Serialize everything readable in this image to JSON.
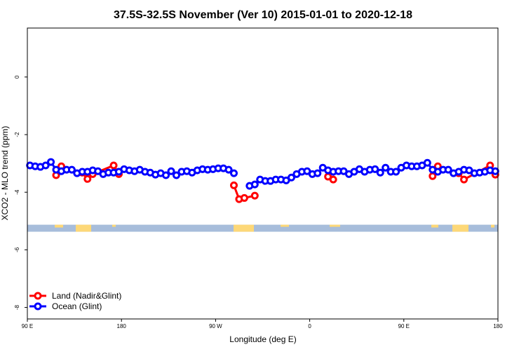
{
  "chart_data": {
    "type": "line",
    "title": "37.5S-32.5S November (Ver 10)   2015-01-01 to 2020-12-18",
    "xlabel": "Longitude (deg E)",
    "ylabel": "XCO2 - MLO trend (ppm)",
    "xlim": [
      90,
      540
    ],
    "ylim": [
      -8.4,
      1.7
    ],
    "x_ticks": [
      {
        "value": 90,
        "label": "90 E"
      },
      {
        "value": 180,
        "label": "180"
      },
      {
        "value": 270,
        "label": "90 W"
      },
      {
        "value": 360,
        "label": "0"
      },
      {
        "value": 450,
        "label": "90 E"
      },
      {
        "value": 540,
        "label": "180"
      }
    ],
    "y_ticks": [
      {
        "value": 0,
        "label": "0"
      },
      {
        "value": -2,
        "label": "-2"
      },
      {
        "value": -4,
        "label": "-4"
      },
      {
        "value": -6,
        "label": "-6"
      },
      {
        "value": -8,
        "label": "-8"
      }
    ],
    "grid": false,
    "legend_position": "bottom-left",
    "land_mask_y": -5.25,
    "series": [
      {
        "name": "Land (Nadir&Glint)",
        "color": "#ff0000",
        "x": [
          117.5,
          122.5,
          142.5,
          147.5,
          152.5,
          172.5,
          177.5,
          287.5,
          292.5,
          297.5,
          307.5,
          377.5,
          382.5,
          477.5,
          482.5,
          502.5,
          507.5,
          532.5,
          537.5
        ],
        "y": [
          -3.41,
          -3.1,
          -3.32,
          -3.54,
          -3.37,
          -3.07,
          -3.37,
          -3.76,
          -4.24,
          -4.2,
          -4.12,
          -3.46,
          -3.56,
          -3.44,
          -3.1,
          -3.34,
          -3.56,
          -3.07,
          -3.39
        ]
      },
      {
        "name": "Ocean (Glint)",
        "color": "#0000ff",
        "x_start": 92.5,
        "x_step": 5,
        "segments": [
          {
            "start_index": 0,
            "y": [
              -3.07,
              -3.1,
              -3.12,
              -3.07,
              -2.95,
              -3.22,
              -3.27,
              -3.22,
              -3.22,
              -3.34,
              -3.29,
              -3.29,
              -3.24,
              -3.27,
              -3.37,
              -3.32,
              -3.32,
              -3.29,
              -3.2,
              -3.24,
              -3.27,
              -3.22,
              -3.29,
              -3.32,
              -3.39,
              -3.34,
              -3.41,
              -3.27,
              -3.41,
              -3.29,
              -3.27,
              -3.32,
              -3.24,
              -3.2,
              -3.22,
              -3.2,
              -3.17,
              -3.17,
              -3.22,
              -3.34
            ]
          },
          {
            "start_index": 42,
            "y": [
              -3.78,
              -3.73,
              -3.56,
              -3.61,
              -3.61,
              -3.56,
              -3.56,
              -3.59,
              -3.49,
              -3.37,
              -3.29,
              -3.27,
              -3.37,
              -3.34,
              -3.15,
              -3.24,
              -3.29,
              -3.27,
              -3.27,
              -3.37,
              -3.29,
              -3.2,
              -3.29,
              -3.22,
              -3.2,
              -3.32,
              -3.15,
              -3.29,
              -3.29,
              -3.15,
              -3.07,
              -3.1,
              -3.1,
              -3.07,
              -2.98,
              -3.22,
              -3.29,
              -3.22,
              -3.22,
              -3.34,
              -3.29,
              -3.22,
              -3.24,
              -3.34,
              -3.32,
              -3.29,
              -3.24,
              -3.27
            ]
          }
        ]
      }
    ],
    "land_color": "#fdd878",
    "ocean_color": "#a7bddb"
  }
}
